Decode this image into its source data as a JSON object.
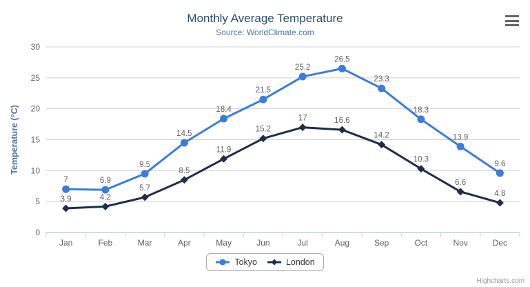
{
  "chart": {
    "title": "Monthly Average Temperature",
    "subtitle": "Source: WorldClimate.com",
    "credits": "Highcharts.com",
    "menu_icon": "hamburger-icon",
    "colors": {
      "title": "#274b6d",
      "subtitle": "#4d759e",
      "axis_title": "#4d759e",
      "axis_labels": "#606060",
      "data_labels": "#606060",
      "gridline": "#d0d0d0",
      "axis_line": "#c0d0e0",
      "legend_text": "#333333",
      "credits_text": "#999999",
      "menu_icon": "#666666",
      "background": "#ffffff"
    }
  },
  "chart_data": {
    "type": "line",
    "title": "Monthly Average Temperature",
    "subtitle": "Source: WorldClimate.com",
    "xlabel": "",
    "ylabel": "Temperature (°C)",
    "ylim": [
      0,
      30
    ],
    "ytick_step": 5,
    "grid": true,
    "legend_position": "bottom-center",
    "categories": [
      "Jan",
      "Feb",
      "Mar",
      "Apr",
      "May",
      "Jun",
      "Jul",
      "Aug",
      "Sep",
      "Oct",
      "Nov",
      "Dec"
    ],
    "series": [
      {
        "name": "Tokyo",
        "color": "#3b7dd8",
        "marker": "circle",
        "values": [
          7,
          6.9,
          9.5,
          14.5,
          18.4,
          21.5,
          25.2,
          26.5,
          23.3,
          18.3,
          13.9,
          9.6
        ]
      },
      {
        "name": "London",
        "color": "#1f2d47",
        "marker": "diamond",
        "values": [
          3.9,
          4.2,
          5.7,
          8.5,
          11.9,
          15.2,
          17,
          16.6,
          14.2,
          10.3,
          6.6,
          4.8
        ]
      }
    ]
  }
}
